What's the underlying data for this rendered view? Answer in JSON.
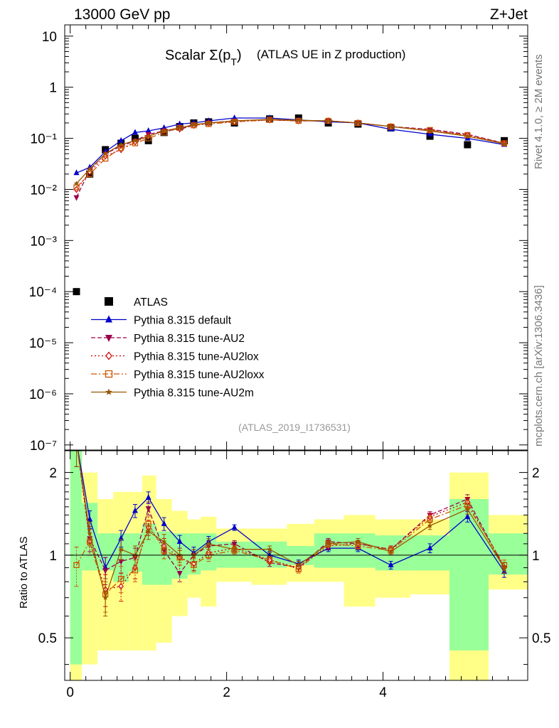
{
  "header": {
    "left": "13000 GeV pp",
    "right": "Z+Jet"
  },
  "side": {
    "top": "Rivet 4.1.0, ≥ 2M events",
    "bottom": "mcplots.cern.ch [arXiv:1306.3436]"
  },
  "chart_data": {
    "type": "scatter",
    "title_main": "Scalar Σ(p",
    "title_sub": "T",
    "title_close": ")",
    "title_rest": "(ATLAS UE in Z production)",
    "analysis_id": "(ATLAS_2019_I1736531)",
    "xlim": [
      -0.07,
      5.85
    ],
    "upper": {
      "yscale": "log",
      "ylim_exp": [
        -7.1,
        1.22
      ],
      "tick_labels": [
        "10",
        "1",
        "10⁻¹",
        "10⁻²",
        "10⁻³",
        "10⁻⁴",
        "10⁻⁵",
        "10⁻⁶",
        "10⁻⁷"
      ],
      "tick_exps": [
        1,
        0,
        -1,
        -2,
        -3,
        -4,
        -5,
        -6,
        -7
      ]
    },
    "lower": {
      "ylabel": "Ratio to ATLAS",
      "ylim": [
        0.35,
        2.4
      ],
      "tick_labels": [
        "2",
        "1",
        "0.5"
      ],
      "tick_values": [
        2,
        1,
        0.5
      ]
    },
    "x_ticks": [
      0,
      2,
      4
    ],
    "x_tick_labels": [
      "0",
      "2",
      "4"
    ],
    "x": [
      0.08,
      0.25,
      0.45,
      0.65,
      0.83,
      1.0,
      1.2,
      1.4,
      1.58,
      1.77,
      2.1,
      2.55,
      2.92,
      3.3,
      3.68,
      4.1,
      4.6,
      5.08,
      5.55
    ],
    "bin_edges": [
      0.0,
      0.15,
      0.35,
      0.55,
      0.75,
      0.92,
      1.1,
      1.3,
      1.5,
      1.67,
      1.87,
      2.32,
      2.77,
      3.12,
      3.5,
      3.9,
      4.35,
      4.85,
      5.35,
      5.85
    ],
    "band_inner": [
      [
        0.4,
        2.4
      ],
      [
        0.88,
        1.55
      ],
      [
        0.88,
        1.2
      ],
      [
        0.8,
        1.2
      ],
      [
        0.87,
        1.2
      ],
      [
        0.78,
        1.3
      ],
      [
        0.78,
        1.22
      ],
      [
        0.82,
        1.2
      ],
      [
        0.85,
        1.2
      ],
      [
        0.88,
        1.2
      ],
      [
        0.9,
        1.12
      ],
      [
        0.9,
        1.12
      ],
      [
        0.92,
        1.08
      ],
      [
        0.9,
        1.2
      ],
      [
        0.9,
        1.2
      ],
      [
        0.88,
        1.18
      ],
      [
        0.88,
        1.18
      ],
      [
        0.45,
        1.6
      ],
      [
        0.85,
        1.2
      ]
    ],
    "band_outer": [
      [
        0.3,
        2.4
      ],
      [
        0.4,
        2.0
      ],
      [
        0.45,
        1.6
      ],
      [
        0.45,
        1.7
      ],
      [
        0.45,
        1.7
      ],
      [
        0.45,
        1.95
      ],
      [
        0.48,
        1.6
      ],
      [
        0.6,
        1.45
      ],
      [
        0.7,
        1.35
      ],
      [
        0.65,
        1.38
      ],
      [
        0.8,
        1.25
      ],
      [
        0.78,
        1.25
      ],
      [
        0.8,
        1.3
      ],
      [
        0.8,
        1.35
      ],
      [
        0.65,
        1.4
      ],
      [
        0.7,
        1.35
      ],
      [
        0.72,
        1.35
      ],
      [
        0.35,
        2.0
      ],
      [
        0.75,
        1.4
      ]
    ],
    "series": [
      {
        "name": "ATLAS",
        "color": "#000000",
        "marker": "square",
        "dash": "",
        "values": [
          0.0001,
          0.02,
          0.06,
          0.08,
          0.1,
          0.09,
          0.13,
          0.17,
          0.2,
          0.21,
          0.2,
          0.24,
          0.25,
          0.2,
          0.19,
          0.16,
          0.11,
          0.075,
          0.09
        ],
        "errors": [
          1e-05,
          0.002,
          0.006,
          0.008,
          0.01,
          0.009,
          0.01,
          0.01,
          0.01,
          0.01,
          0.01,
          0.01,
          0.01,
          0.01,
          0.01,
          0.01,
          0.008,
          0.006,
          0.007
        ]
      },
      {
        "name": "Pythia 8.315 default",
        "color": "#0000cc",
        "marker": "triangle-up",
        "dash": "",
        "values": [
          0.021,
          0.027,
          0.055,
          0.09,
          0.13,
          0.14,
          0.16,
          0.19,
          0.2,
          0.22,
          0.25,
          0.25,
          0.23,
          0.21,
          0.2,
          0.15,
          0.12,
          0.1,
          0.075
        ],
        "ratio": [
          2.6,
          1.35,
          0.9,
          1.15,
          1.45,
          1.62,
          1.3,
          1.12,
          1.02,
          1.12,
          1.26,
          1.0,
          0.93,
          1.06,
          1.06,
          0.92,
          1.06,
          1.38,
          0.87
        ],
        "ratio_err": [
          0.5,
          0.1,
          0.08,
          0.08,
          0.08,
          0.08,
          0.07,
          0.06,
          0.05,
          0.05,
          0.03,
          0.03,
          0.03,
          0.03,
          0.03,
          0.03,
          0.04,
          0.06,
          0.04
        ]
      },
      {
        "name": "Pythia 8.315 tune-AU2",
        "color": "#99004c",
        "marker": "triangle-down",
        "dash": "6,3",
        "values": [
          0.007,
          0.024,
          0.05,
          0.07,
          0.09,
          0.12,
          0.14,
          0.15,
          0.18,
          0.2,
          0.22,
          0.23,
          0.22,
          0.22,
          0.2,
          0.17,
          0.15,
          0.12,
          0.08
        ],
        "ratio": [
          2.6,
          1.15,
          0.88,
          0.95,
          0.98,
          1.48,
          1.04,
          0.86,
          1.0,
          1.08,
          1.1,
          0.94,
          0.9,
          1.12,
          1.1,
          1.05,
          1.4,
          1.6,
          0.9
        ],
        "ratio_err": [
          0.5,
          0.12,
          0.1,
          0.09,
          0.08,
          0.08,
          0.07,
          0.06,
          0.05,
          0.05,
          0.03,
          0.03,
          0.03,
          0.03,
          0.03,
          0.03,
          0.04,
          0.06,
          0.04
        ]
      },
      {
        "name": "Pythia 8.315 tune-AU2lox",
        "color": "#cc0000",
        "marker": "diamond-open",
        "dash": "2,3",
        "values": [
          0.01,
          0.022,
          0.045,
          0.06,
          0.085,
          0.11,
          0.14,
          0.16,
          0.18,
          0.2,
          0.21,
          0.23,
          0.22,
          0.22,
          0.2,
          0.17,
          0.14,
          0.115,
          0.08
        ],
        "ratio": [
          2.6,
          1.12,
          0.75,
          0.77,
          0.9,
          1.26,
          1.08,
          0.98,
          0.93,
          1.02,
          1.06,
          0.96,
          0.9,
          1.08,
          1.1,
          1.05,
          1.38,
          1.56,
          0.9
        ],
        "ratio_err": [
          0.5,
          0.12,
          0.1,
          0.09,
          0.08,
          0.08,
          0.07,
          0.06,
          0.05,
          0.05,
          0.03,
          0.03,
          0.03,
          0.03,
          0.03,
          0.03,
          0.04,
          0.06,
          0.04
        ]
      },
      {
        "name": "Pythia 8.315 tune-AU2loxx",
        "color": "#cc5500",
        "marker": "square-open",
        "dash": "8,3,2,3",
        "values": [
          0.011,
          0.02,
          0.04,
          0.065,
          0.08,
          0.1,
          0.13,
          0.16,
          0.18,
          0.19,
          0.21,
          0.23,
          0.22,
          0.22,
          0.2,
          0.17,
          0.145,
          0.115,
          0.08
        ],
        "ratio": [
          0.92,
          1.12,
          0.72,
          0.82,
          0.88,
          1.3,
          1.04,
          0.98,
          0.92,
          1.0,
          1.04,
          0.96,
          0.89,
          1.1,
          1.08,
          1.04,
          1.35,
          1.52,
          0.92
        ],
        "ratio_err": [
          0.15,
          0.12,
          0.1,
          0.09,
          0.08,
          0.08,
          0.07,
          0.06,
          0.05,
          0.05,
          0.03,
          0.03,
          0.03,
          0.03,
          0.03,
          0.03,
          0.04,
          0.06,
          0.04
        ]
      },
      {
        "name": "Pythia 8.315 tune-AU2m",
        "color": "#995500",
        "marker": "star",
        "dash": "",
        "values": [
          0.013,
          0.025,
          0.05,
          0.075,
          0.09,
          0.11,
          0.14,
          0.16,
          0.185,
          0.2,
          0.22,
          0.235,
          0.225,
          0.22,
          0.2,
          0.17,
          0.14,
          0.11,
          0.078
        ],
        "ratio": [
          2.6,
          1.2,
          0.7,
          1.05,
          1.0,
          1.22,
          1.12,
          1.0,
          1.0,
          1.1,
          1.05,
          1.05,
          0.92,
          1.1,
          1.12,
          1.03,
          1.28,
          1.47,
          0.9
        ],
        "ratio_err": [
          0.5,
          0.12,
          0.1,
          0.09,
          0.08,
          0.08,
          0.07,
          0.06,
          0.05,
          0.05,
          0.03,
          0.03,
          0.03,
          0.03,
          0.03,
          0.03,
          0.04,
          0.06,
          0.04
        ]
      }
    ]
  }
}
